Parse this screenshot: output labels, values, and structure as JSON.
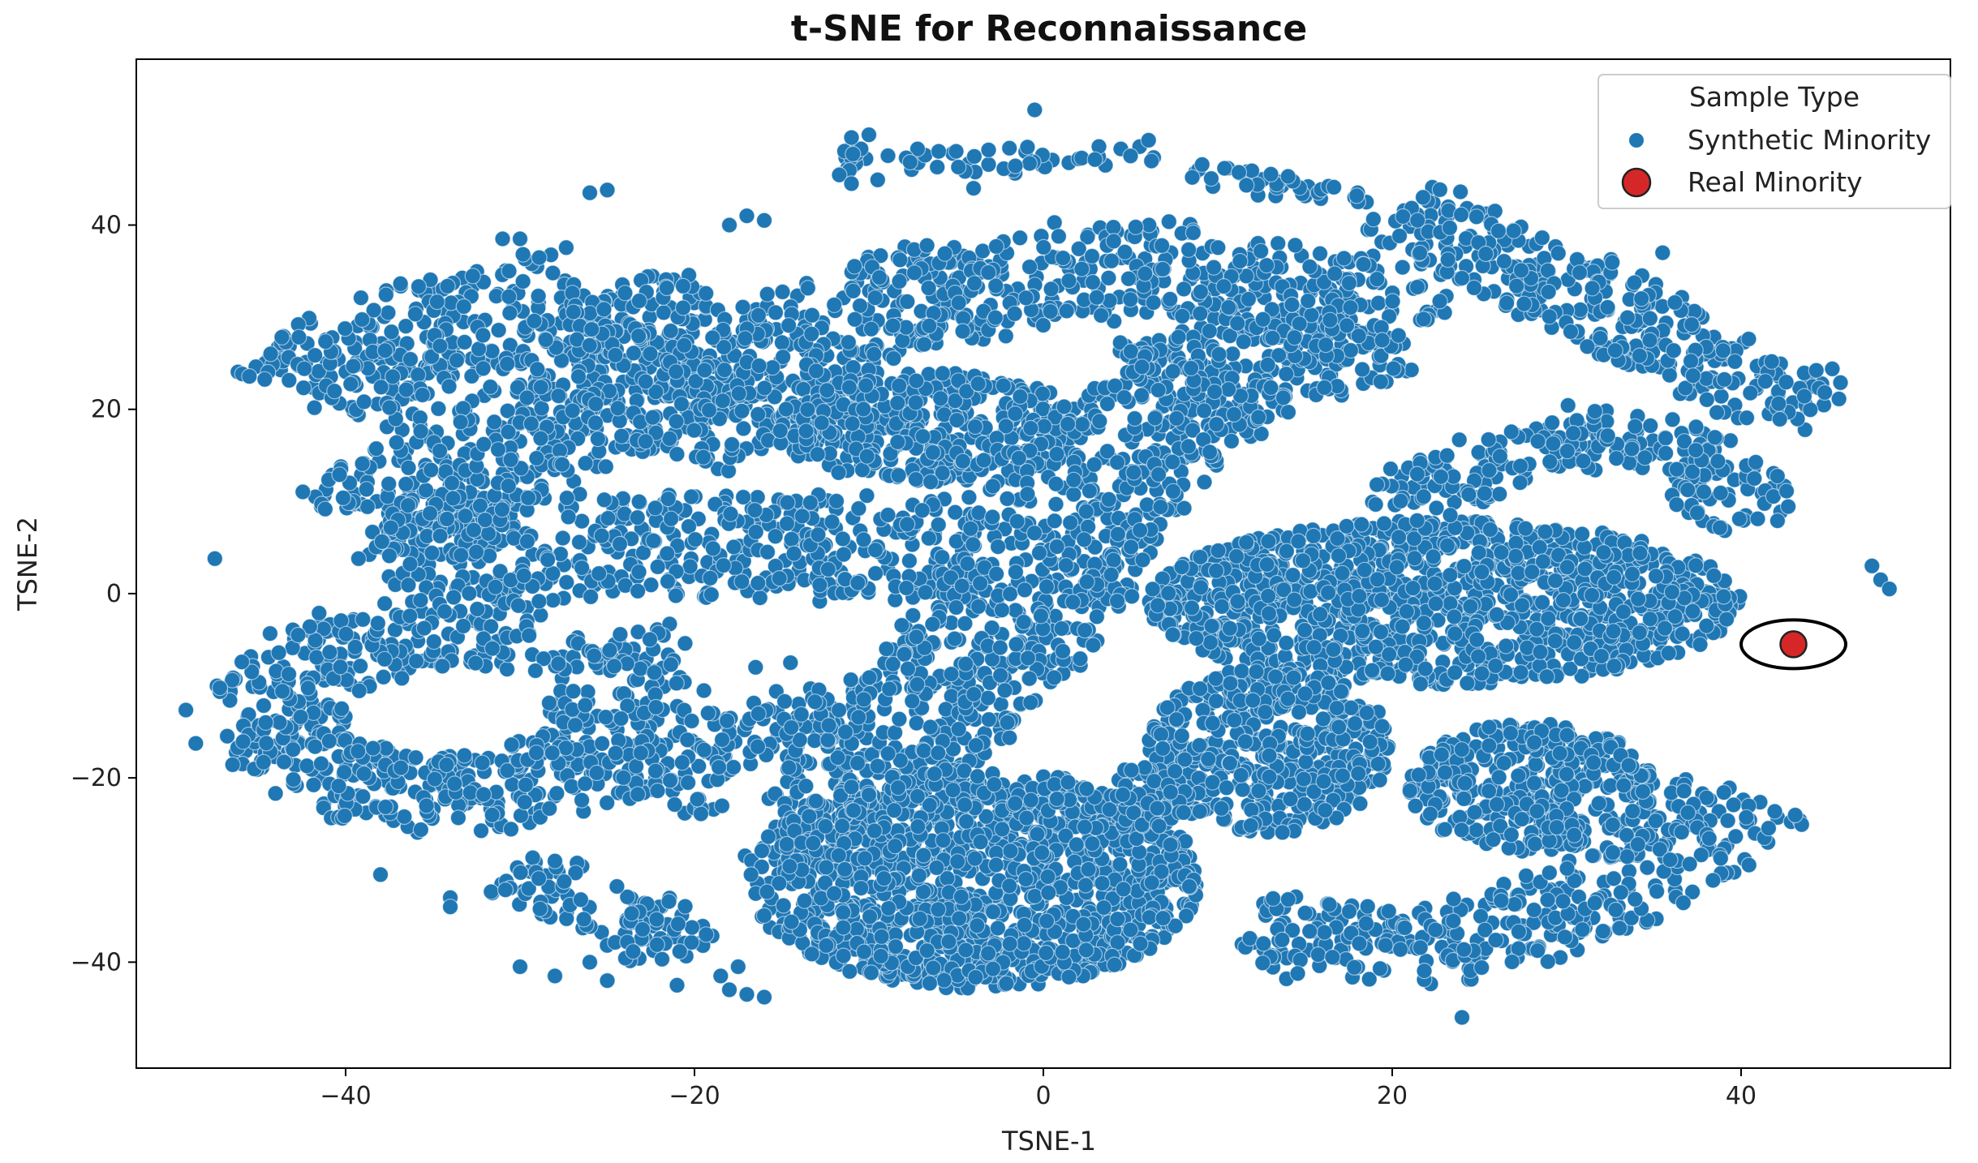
{
  "chart_data": {
    "type": "scatter",
    "title": "t-SNE for Reconnaissance",
    "xlabel": "TSNE-1",
    "ylabel": "TSNE-2",
    "xlim": [
      -52,
      52
    ],
    "ylim": [
      -51.5,
      58
    ],
    "xticks": [
      -40,
      -20,
      0,
      20,
      40
    ],
    "xtick_labels": [
      "−40",
      "−20",
      "0",
      "20",
      "40"
    ],
    "yticks": [
      -40,
      -20,
      0,
      20,
      40
    ],
    "ytick_labels": [
      "−40",
      "−20",
      "0",
      "20",
      "40"
    ],
    "grid": false,
    "legend": {
      "title": "Sample Type",
      "placement": "top-right",
      "entries": [
        "Synthetic Minority",
        "Real Minority"
      ]
    },
    "colors": {
      "synthetic": "#1f77b4",
      "real": "#d62728",
      "real_edge": "#222222",
      "highlight_ring": "#000000"
    },
    "series": [
      {
        "name": "Synthetic Minority",
        "color": "#1f77b4",
        "clusters": [
          {
            "region": "upper-left curl (band)",
            "path": [
              [
                -42,
                21
              ],
              [
                -38,
                27
              ],
              [
                -32,
                30
              ],
              [
                -26,
                32
              ],
              [
                -22,
                27
              ],
              [
                -24,
                21
              ],
              [
                -30,
                17
              ],
              [
                -35,
                12
              ],
              [
                -38,
                7
              ],
              [
                -32,
                5
              ],
              [
                -24,
                5
              ],
              [
                -14,
                5
              ],
              [
                -4,
                5
              ]
            ],
            "halfwidth": 5.5
          },
          {
            "region": "upper arc (band)",
            "path": [
              [
                -22,
                16
              ],
              [
                -16,
                24
              ],
              [
                -10,
                31
              ],
              [
                0,
                35
              ],
              [
                10,
                35
              ],
              [
                18,
                31
              ],
              [
                20,
                28
              ],
              [
                14,
                26
              ],
              [
                6,
                22
              ]
            ],
            "halfwidth": 5.2
          },
          {
            "region": "small central blob",
            "center": [
              -6.5,
              18
            ],
            "radii": [
              9,
              6
            ]
          },
          {
            "region": "central diagonal (band)",
            "path": [
              [
                10,
                24
              ],
              [
                5,
                16
              ],
              [
                1,
                8
              ],
              [
                -1,
                -2
              ],
              [
                -4,
                -8
              ],
              [
                -8,
                -15
              ],
              [
                -10,
                -22
              ],
              [
                -12,
                -30
              ]
            ],
            "halfwidth": 5.5
          },
          {
            "region": "bottom central mass",
            "center": [
              -4,
              -31
            ],
            "radii": [
              13,
              12
            ]
          },
          {
            "region": "lower-left curl (band)",
            "path": [
              [
                -29,
                -4
              ],
              [
                -36,
                -4
              ],
              [
                -42,
                -8
              ],
              [
                -45,
                -14
              ],
              [
                -41,
                -20
              ],
              [
                -34,
                -22
              ],
              [
                -27,
                -20
              ],
              [
                -24,
                -14
              ],
              [
                -24,
                -7
              ],
              [
                -25,
                -4
              ]
            ],
            "halfwidth": 4.2
          },
          {
            "region": "small left thin band",
            "path": [
              [
                -22,
                -23
              ],
              [
                -20,
                -17
              ],
              [
                -16,
                -14
              ],
              [
                -12,
                -13
              ]
            ],
            "halfwidth": 3
          },
          {
            "region": "lower-left diagonal (band)",
            "path": [
              [
                -30,
                -30
              ],
              [
                -24,
                -35
              ],
              [
                -20,
                -39
              ]
            ],
            "halfwidth": 3
          },
          {
            "region": "right middle mass",
            "center": [
              23,
              -1
            ],
            "radii": [
              17,
              9
            ]
          },
          {
            "region": "right ring segment (band)",
            "path": [
              [
                20,
                9
              ],
              [
                25,
                14
              ],
              [
                33,
                18
              ],
              [
                39,
                14
              ],
              [
                40,
                7
              ]
            ],
            "halfwidth": 3
          },
          {
            "region": "upper-right diagonal (band)",
            "path": [
              [
                20,
                42
              ],
              [
                27,
                36
              ],
              [
                35,
                28
              ],
              [
                41,
                22
              ],
              [
                45,
                20
              ]
            ],
            "halfwidth": 3.8
          },
          {
            "region": "lower-right arc (band)",
            "path": [
              [
                12,
                -36
              ],
              [
                20,
                -39
              ],
              [
                28,
                -36
              ],
              [
                35,
                -30
              ],
              [
                40,
                -22
              ]
            ],
            "halfwidth": 4
          },
          {
            "region": "lower-middle blob",
            "center": [
              13,
              -17
            ],
            "radii": [
              7,
              9
            ]
          },
          {
            "region": "small center-right blob",
            "center": [
              28,
              -21
            ],
            "radii": [
              7,
              7
            ]
          },
          {
            "region": "tiny blob",
            "center": [
              6,
              -22
            ],
            "radii": [
              2.5,
              3.5
            ]
          },
          {
            "region": "top-center strip (band)",
            "path": [
              [
                -12,
                47
              ],
              [
                -4,
                47
              ],
              [
                2,
                47
              ],
              [
                6,
                48
              ]
            ],
            "halfwidth": 1.2
          },
          {
            "region": "top-right strip (band)",
            "path": [
              [
                8,
                46
              ],
              [
                12,
                45
              ],
              [
                16,
                43
              ],
              [
                20,
                44
              ]
            ],
            "halfwidth": 1.2
          }
        ],
        "outliers": [
          [
            -47.5,
            3.8
          ],
          [
            -31,
            38.5
          ],
          [
            -30,
            38.5
          ],
          [
            -26,
            43.5
          ],
          [
            -25,
            43.8
          ],
          [
            -17,
            41
          ],
          [
            -16,
            40.5
          ],
          [
            -18,
            40
          ],
          [
            -11,
            49.5
          ],
          [
            -10,
            49.8
          ],
          [
            -9.5,
            44.9
          ],
          [
            -11,
            44.5
          ],
          [
            -6,
            48
          ],
          [
            -5,
            48
          ],
          [
            -4,
            44
          ],
          [
            -0.5,
            52.5
          ],
          [
            5,
            47.5
          ],
          [
            35.5,
            37
          ],
          [
            47.5,
            3
          ],
          [
            48,
            1.5
          ],
          [
            48.5,
            0.5
          ],
          [
            -5,
            -1.5
          ],
          [
            -9,
            -6
          ],
          [
            -14.5,
            -7.5
          ],
          [
            -16.5,
            -8
          ],
          [
            -38,
            -30.5
          ],
          [
            -34,
            -33
          ],
          [
            -34,
            -34
          ],
          [
            -28,
            -41.5
          ],
          [
            -30,
            -40.5
          ],
          [
            -25,
            -42
          ],
          [
            -26,
            -40
          ],
          [
            -21,
            -42.5
          ],
          [
            -18,
            -43
          ],
          [
            -17,
            -43.5
          ],
          [
            -16,
            -43.8
          ],
          [
            -18.5,
            -41.5
          ],
          [
            -17.5,
            -40.5
          ],
          [
            24,
            -46
          ]
        ]
      },
      {
        "name": "Real Minority",
        "color": "#d62728",
        "points": [
          [
            43,
            -5.5
          ]
        ]
      }
    ],
    "annotations": [
      {
        "type": "ellipse",
        "center": [
          43,
          -5.5
        ],
        "radii": [
          3,
          3.2
        ],
        "color": "#000000"
      }
    ]
  }
}
